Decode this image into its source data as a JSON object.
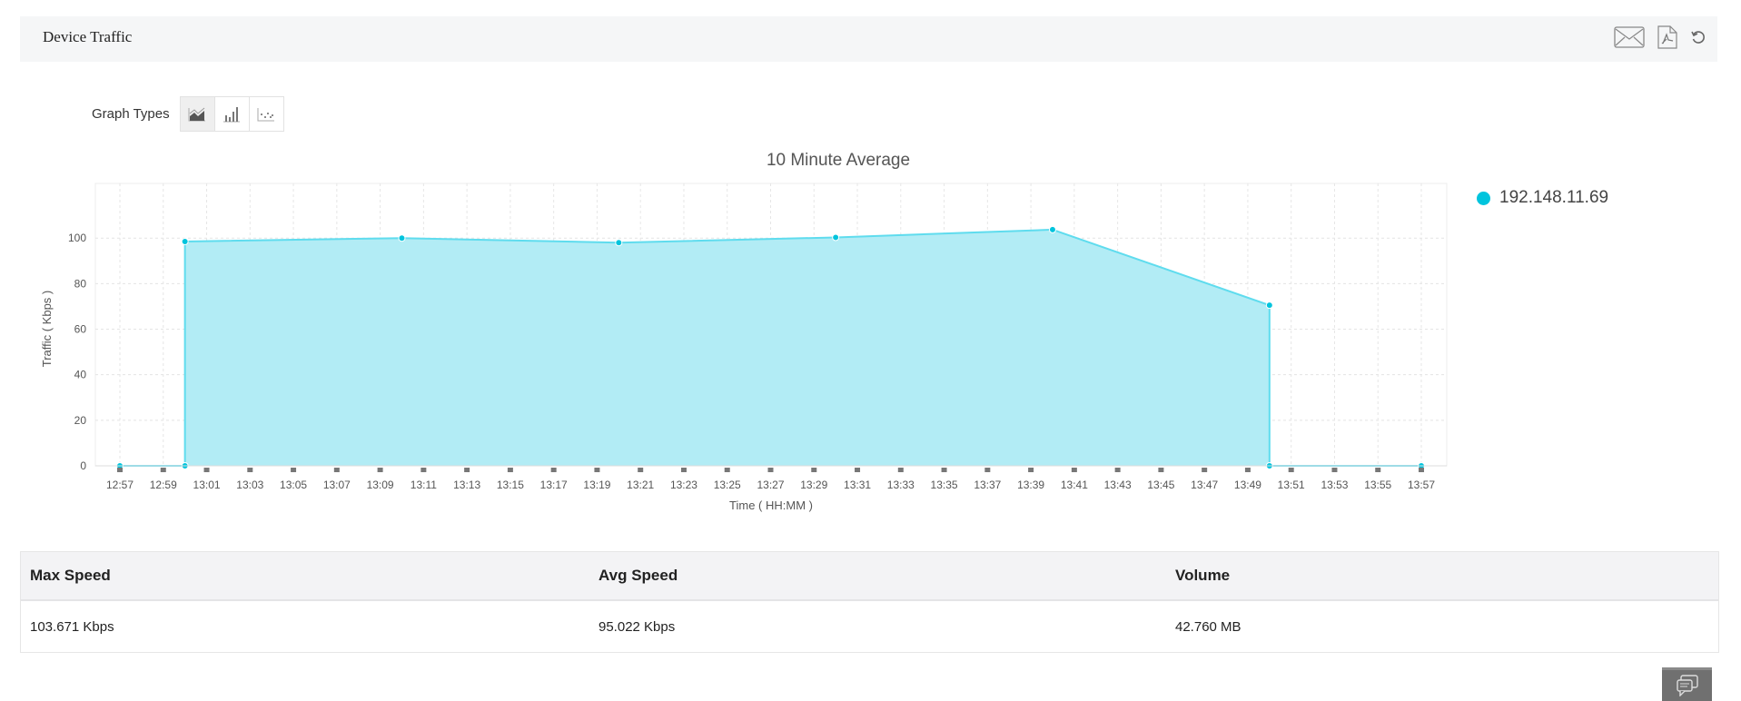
{
  "header": {
    "title": "Device Traffic",
    "icons": [
      "mail-icon",
      "pdf-icon",
      "refresh-icon"
    ]
  },
  "graph_types": {
    "label": "Graph Types",
    "options": [
      "area-chart",
      "bar-chart",
      "scatter-chart"
    ],
    "selected": "area-chart"
  },
  "colors": {
    "series": "#00c4dd",
    "fill": "#b2ecf5",
    "line": "#5fdcee"
  },
  "chart_data": {
    "type": "area",
    "title": "10 Minute Average",
    "xlabel": "Time ( HH:MM )",
    "ylabel": "Traffic ( Kbps )",
    "ylim": [
      0,
      124
    ],
    "yticks": [
      0,
      20,
      40,
      60,
      80,
      100
    ],
    "xlim": [
      "12:57",
      "13:57"
    ],
    "xticks": [
      "12:57",
      "12:59",
      "13:01",
      "13:03",
      "13:05",
      "13:07",
      "13:09",
      "13:11",
      "13:13",
      "13:15",
      "13:17",
      "13:19",
      "13:21",
      "13:23",
      "13:25",
      "13:27",
      "13:29",
      "13:31",
      "13:33",
      "13:35",
      "13:37",
      "13:39",
      "13:41",
      "13:43",
      "13:45",
      "13:47",
      "13:49",
      "13:51",
      "13:53",
      "13:55",
      "13:57"
    ],
    "grid": true,
    "legend_position": "right",
    "series": [
      {
        "name": "192.148.11.69",
        "points": [
          {
            "x": "12:57",
            "y": 0
          },
          {
            "x": "13:00",
            "y": 0
          },
          {
            "x": "13:00",
            "y": 98.5
          },
          {
            "x": "13:10",
            "y": 100
          },
          {
            "x": "13:20",
            "y": 98
          },
          {
            "x": "13:30",
            "y": 100.3
          },
          {
            "x": "13:40",
            "y": 103.7
          },
          {
            "x": "13:50",
            "y": 70.5
          },
          {
            "x": "13:50",
            "y": 0
          },
          {
            "x": "13:57",
            "y": 0
          }
        ]
      }
    ]
  },
  "stats": {
    "headers": [
      "Max Speed",
      "Avg Speed",
      "Volume"
    ],
    "values": [
      "103.671 Kbps",
      "95.022 Kbps",
      "42.760 MB"
    ]
  }
}
